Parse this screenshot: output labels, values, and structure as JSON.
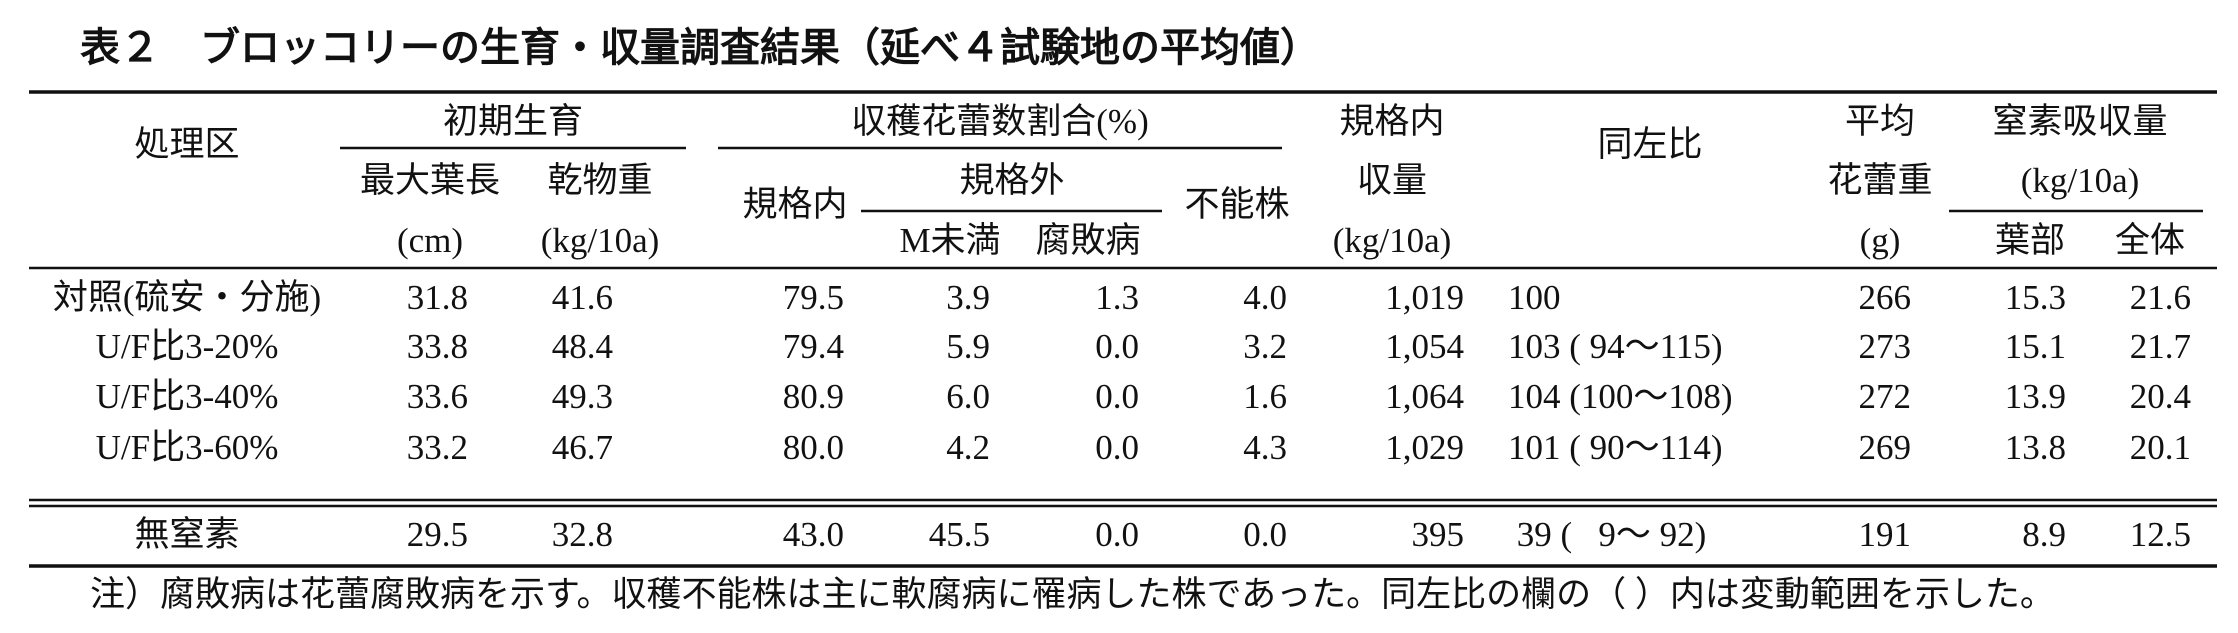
{
  "title": "表２　ブロッコリーの生育・収量調査結果（延べ４試験地の平均値）",
  "header": {
    "treatment": "処理区",
    "early_growth": "初期生育",
    "max_leaf_length": "最大葉長",
    "max_leaf_length_unit": "(cm)",
    "dry_weight": "乾物重",
    "dry_weight_unit": "(kg/10a)",
    "harvest_ratio": "収穫花蕾数割合(%)",
    "in_spec": "規格内",
    "out_spec": "規格外",
    "under_m": "M未満",
    "rot": "腐敗病",
    "unharvestable": "不能株",
    "yield_line1": "規格内",
    "yield_line2": "収量",
    "yield_unit": "(kg/10a)",
    "ratio": "同左比",
    "mean_line1": "平均",
    "mean_line2": "花蕾重",
    "mean_unit": "(g)",
    "nitrogen": "窒素吸収量",
    "nitrogen_unit": "(kg/10a)",
    "leaf": "葉部",
    "total": "全体"
  },
  "table": {
    "rows": [
      [
        "対照(硫安・分施)",
        "31.8",
        "41.6",
        "79.5",
        "3.9",
        "1.3",
        "4.0",
        "1,019",
        "100",
        "266",
        "15.3",
        "21.6"
      ],
      [
        "U/F比3-20%",
        "33.8",
        "48.4",
        "79.4",
        "5.9",
        "0.0",
        "3.2",
        "1,054",
        "103 ( 94～115)",
        "273",
        "15.1",
        "21.7"
      ],
      [
        "U/F比3-40%",
        "33.6",
        "49.3",
        "80.9",
        "6.0",
        "0.0",
        "1.6",
        "1,064",
        "104 (100～108)",
        "272",
        "13.9",
        "20.4"
      ],
      [
        "U/F比3-60%",
        "33.2",
        "46.7",
        "80.0",
        "4.2",
        "0.0",
        "4.3",
        "1,029",
        "101 ( 90～114)",
        "269",
        "13.8",
        "20.1"
      ],
      [
        "無窒素",
        "29.5",
        "32.8",
        "43.0",
        "45.5",
        "0.0",
        "0.0",
        "395",
        " 39 (   9～ 92)",
        "191",
        "8.9",
        "12.5"
      ]
    ]
  },
  "note": "注）腐敗病は花蕾腐敗病を示す。収穫不能株は主に軟腐病に罹病した株であった。同左比の欄の（ ）内は変動範囲を示した。"
}
